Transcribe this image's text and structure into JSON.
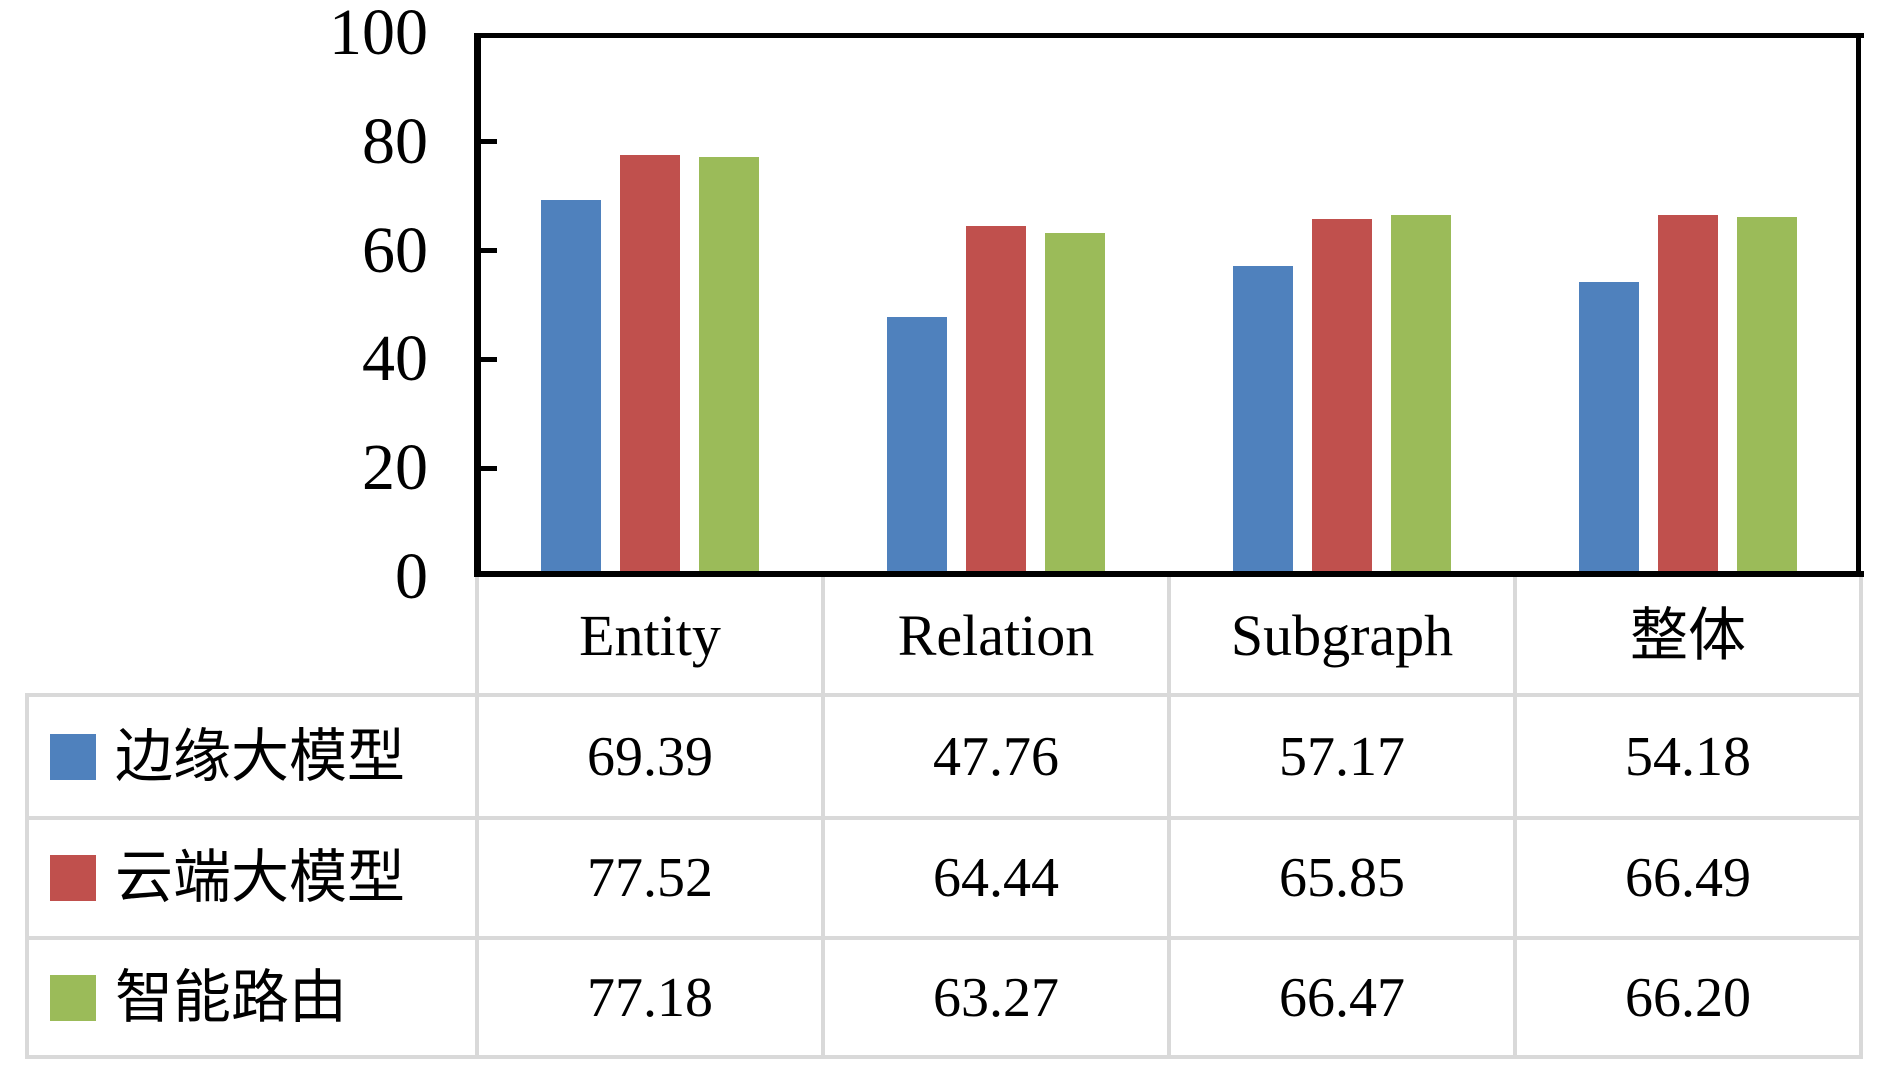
{
  "chart_data": {
    "type": "bar",
    "title": "",
    "xlabel": "",
    "ylabel": "",
    "categories": [
      "Entity",
      "Relation",
      "Subgraph",
      "整体"
    ],
    "series": [
      {
        "name": "边缘大模型",
        "color": "#4F81BD",
        "values": [
          69.39,
          47.76,
          57.17,
          54.18
        ],
        "value_labels": [
          "69.39",
          "47.76",
          "57.17",
          "54.18"
        ]
      },
      {
        "name": "云端大模型",
        "color": "#C0504D",
        "values": [
          77.52,
          64.44,
          65.85,
          66.49
        ],
        "value_labels": [
          "77.52",
          "64.44",
          "65.85",
          "66.49"
        ]
      },
      {
        "name": "智能路由",
        "color": "#9BBB59",
        "values": [
          77.18,
          63.27,
          66.47,
          66.2
        ],
        "value_labels": [
          "77.18",
          "63.27",
          "66.47",
          "66.20"
        ]
      }
    ],
    "y_axis": {
      "min": 0,
      "max": 100,
      "tick_step": 20,
      "tick_values": [
        0,
        20,
        40,
        60,
        80,
        100
      ],
      "tick_labels": [
        "0",
        "20",
        "40",
        "60",
        "80",
        "100"
      ]
    },
    "ylim": [
      0,
      100
    ],
    "grid": false,
    "legend_position": "data-table-left-column",
    "data_table_shown": true
  },
  "colors": {
    "background": "#FFFFFF",
    "axis": "#000000",
    "table_border": "#D9D9D9",
    "text": "#000000"
  }
}
